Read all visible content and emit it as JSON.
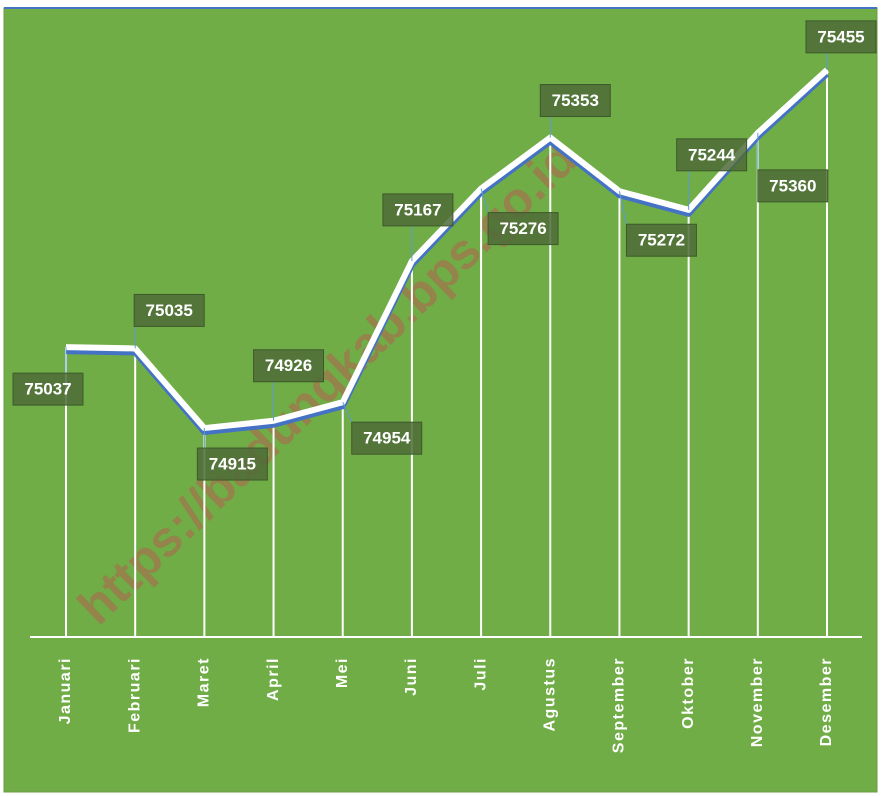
{
  "chart_data": {
    "type": "line",
    "categories": [
      "Januari",
      "Februari",
      "Maret",
      "April",
      "Mei",
      "Juni",
      "Juli",
      "Agustus",
      "September",
      "Oktober",
      "November",
      "Desember"
    ],
    "series": [
      {
        "name": "",
        "color": "#ffffff",
        "values": [
          75037,
          75035,
          74915,
          74926,
          74954,
          75167,
          75276,
          75353,
          75272,
          75244,
          75360,
          75455
        ]
      }
    ],
    "ylim": [
      74600,
      75500
    ],
    "watermark": "https://badungkab.bps.go.id"
  }
}
